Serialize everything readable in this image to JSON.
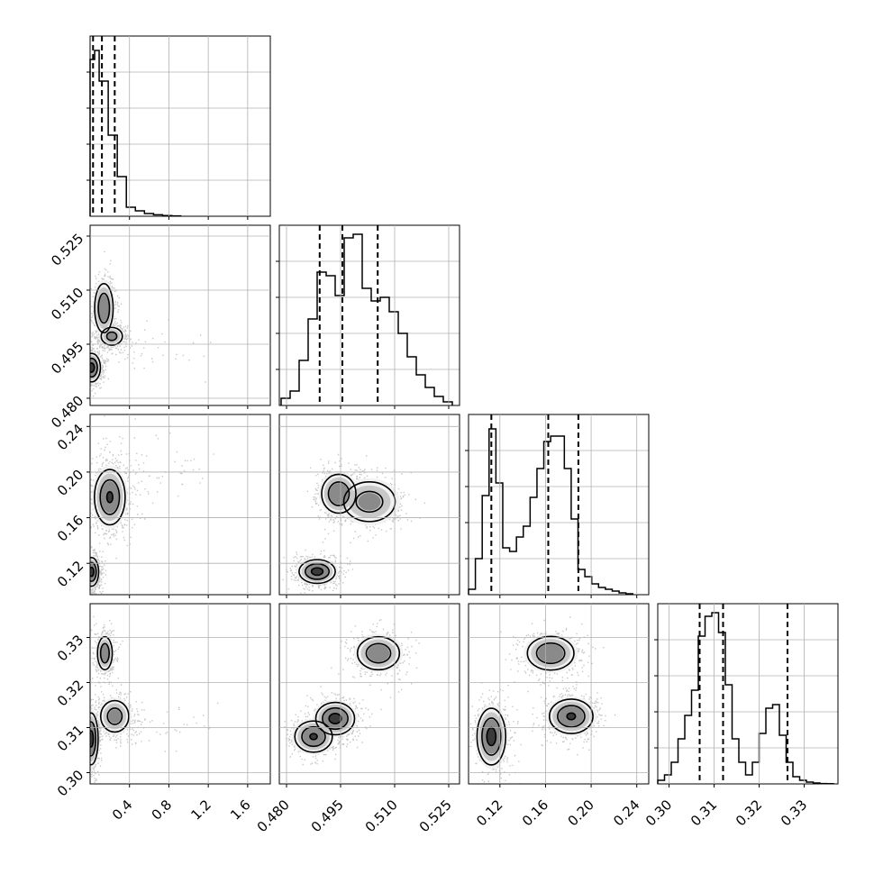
{
  "chart_data": {
    "type": "corner",
    "parameters": [
      {
        "ticks": [
          0.4,
          0.8,
          1.2,
          1.6
        ],
        "tick_labels": [
          "0.4",
          "0.8",
          "1.2",
          "1.6"
        ],
        "range": [
          0.0,
          1.83
        ],
        "quantiles": [
          0.03,
          0.12,
          0.25
        ]
      },
      {
        "ticks": [
          0.48,
          0.495,
          0.51,
          0.525
        ],
        "tick_labels": [
          "0.480",
          "0.495",
          "0.510",
          "0.525"
        ],
        "range": [
          0.478,
          0.528
        ],
        "quantiles": [
          0.4892,
          0.4955,
          0.5053
        ]
      },
      {
        "ticks": [
          0.12,
          0.16,
          0.2,
          0.24
        ],
        "tick_labels": [
          "0.12",
          "0.16",
          "0.20",
          "0.24"
        ],
        "range": [
          0.0925,
          0.2505
        ],
        "quantiles": [
          0.1125,
          0.1624,
          0.1888
        ]
      },
      {
        "ticks": [
          0.3,
          0.31,
          0.32,
          0.33
        ],
        "tick_labels": [
          "0.30",
          "0.31",
          "0.32",
          "0.33"
        ],
        "range": [
          0.2975,
          0.3375
        ],
        "quantiles": [
          0.3068,
          0.312,
          0.3263
        ]
      }
    ],
    "histograms": [
      {
        "edges": [
          0.0,
          0.046,
          0.092,
          0.138,
          0.184,
          0.23,
          0.276,
          0.322,
          0.368,
          0.414,
          0.46,
          0.506,
          0.552,
          0.598,
          0.644,
          0.69,
          0.736,
          0.782,
          0.828,
          0.874,
          0.92
        ],
        "counts": [
          0.87,
          0.92,
          0.75,
          0.75,
          0.45,
          0.45,
          0.22,
          0.22,
          0.05,
          0.05,
          0.03,
          0.03,
          0.015,
          0.015,
          0.008,
          0.008,
          0.004,
          0.004,
          0.002,
          0.002
        ]
      },
      {
        "edges": [
          0.4785,
          0.481,
          0.4835,
          0.486,
          0.4885,
          0.491,
          0.4935,
          0.496,
          0.4985,
          0.501,
          0.5035,
          0.506,
          0.5085,
          0.511,
          0.5135,
          0.516,
          0.5185,
          0.521,
          0.5235,
          0.526
        ],
        "counts": [
          0.04,
          0.08,
          0.25,
          0.48,
          0.74,
          0.72,
          0.61,
          0.93,
          0.95,
          0.65,
          0.58,
          0.6,
          0.52,
          0.4,
          0.27,
          0.17,
          0.1,
          0.05,
          0.02
        ]
      },
      {
        "edges": [
          0.0925,
          0.0985,
          0.1045,
          0.1105,
          0.1165,
          0.1225,
          0.1285,
          0.1345,
          0.1405,
          0.1465,
          0.1525,
          0.1585,
          0.1645,
          0.1705,
          0.1765,
          0.1825,
          0.1885,
          0.1945,
          0.2005,
          0.2065,
          0.2125,
          0.2185,
          0.2245,
          0.2305,
          0.2365
        ],
        "counts": [
          0.03,
          0.2,
          0.55,
          0.92,
          0.62,
          0.26,
          0.24,
          0.32,
          0.38,
          0.54,
          0.7,
          0.85,
          0.88,
          0.88,
          0.7,
          0.42,
          0.14,
          0.1,
          0.06,
          0.04,
          0.03,
          0.02,
          0.01,
          0.005
        ]
      },
      {
        "edges": [
          0.2975,
          0.299,
          0.3005,
          0.302,
          0.3035,
          0.305,
          0.3065,
          0.308,
          0.3095,
          0.311,
          0.3125,
          0.314,
          0.3155,
          0.317,
          0.3185,
          0.32,
          0.3215,
          0.323,
          0.3245,
          0.326,
          0.3275,
          0.329,
          0.3305,
          0.332,
          0.3335,
          0.335,
          0.3365
        ],
        "counts": [
          0.02,
          0.05,
          0.12,
          0.25,
          0.38,
          0.52,
          0.82,
          0.93,
          0.95,
          0.84,
          0.55,
          0.25,
          0.12,
          0.05,
          0.12,
          0.28,
          0.42,
          0.44,
          0.27,
          0.12,
          0.04,
          0.02,
          0.01,
          0.005,
          0.002,
          0.001
        ]
      }
    ],
    "blobs": {
      "1_0": [
        {
          "x": 0.015,
          "y": 0.4885,
          "sx": 0.05,
          "sy": 0.0022,
          "w": 1.0
        },
        {
          "x": 0.14,
          "y": 0.505,
          "sx": 0.055,
          "sy": 0.004,
          "w": 0.85
        },
        {
          "x": 0.22,
          "y": 0.4972,
          "sx": 0.07,
          "sy": 0.0016,
          "w": 0.65
        },
        {
          "x": 0.55,
          "y": 0.494,
          "sx": 0.3,
          "sy": 0.003,
          "w": 0.08
        }
      ],
      "2_0": [
        {
          "x": 0.015,
          "y": 0.1125,
          "sx": 0.04,
          "sy": 0.007,
          "w": 1.0
        },
        {
          "x": 0.2,
          "y": 0.178,
          "sx": 0.09,
          "sy": 0.014,
          "w": 0.9
        },
        {
          "x": 0.6,
          "y": 0.205,
          "sx": 0.28,
          "sy": 0.015,
          "w": 0.1
        }
      ],
      "2_1": [
        {
          "x": 0.4885,
          "y": 0.1128,
          "sx": 0.0028,
          "sy": 0.0058,
          "w": 1.0
        },
        {
          "x": 0.4945,
          "y": 0.181,
          "sx": 0.0028,
          "sy": 0.01,
          "w": 0.85
        },
        {
          "x": 0.503,
          "y": 0.174,
          "sx": 0.0045,
          "sy": 0.011,
          "w": 0.7
        }
      ],
      "3_0": [
        {
          "x": 0.01,
          "y": 0.3075,
          "sx": 0.04,
          "sy": 0.0032,
          "w": 1.0
        },
        {
          "x": 0.15,
          "y": 0.3265,
          "sx": 0.045,
          "sy": 0.0022,
          "w": 0.8
        },
        {
          "x": 0.25,
          "y": 0.3125,
          "sx": 0.09,
          "sy": 0.0022,
          "w": 0.7
        },
        {
          "x": 0.65,
          "y": 0.3105,
          "sx": 0.3,
          "sy": 0.0025,
          "w": 0.08
        }
      ],
      "3_1": [
        {
          "x": 0.4875,
          "y": 0.308,
          "sx": 0.003,
          "sy": 0.002,
          "w": 0.9
        },
        {
          "x": 0.4935,
          "y": 0.312,
          "sx": 0.003,
          "sy": 0.002,
          "w": 1.0
        },
        {
          "x": 0.5055,
          "y": 0.3265,
          "sx": 0.0035,
          "sy": 0.0022,
          "w": 0.8
        }
      ],
      "3_2": [
        {
          "x": 0.1125,
          "y": 0.308,
          "sx": 0.007,
          "sy": 0.0035,
          "w": 1.0
        },
        {
          "x": 0.1645,
          "y": 0.3265,
          "sx": 0.012,
          "sy": 0.0022,
          "w": 0.85
        },
        {
          "x": 0.1825,
          "y": 0.3125,
          "sx": 0.011,
          "sy": 0.0022,
          "w": 0.9
        }
      ]
    }
  }
}
